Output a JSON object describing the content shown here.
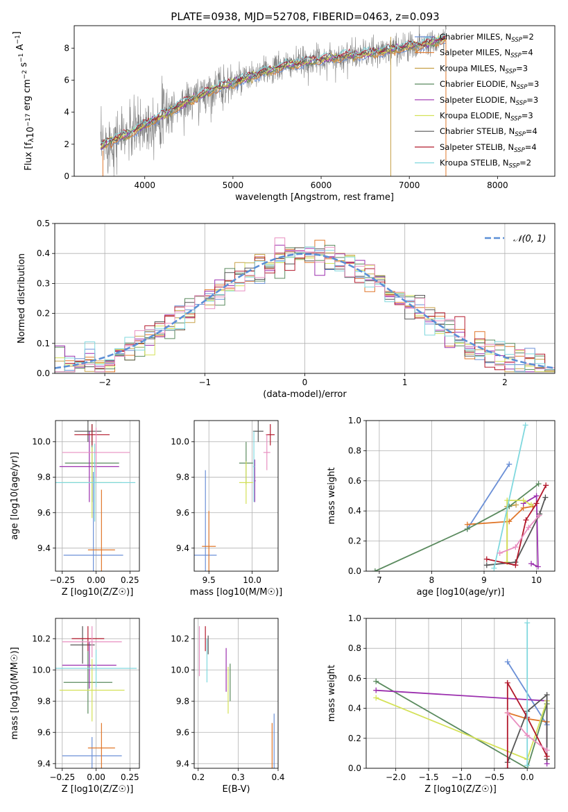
{
  "title": "PLATE=0938, MJD=52708, FIBERID=0463, z=0.093",
  "colors": {
    "Chabrier MILES": "#6a8fd6",
    "Salpeter MILES": "#e0772a",
    "Kroupa MILES": "#c8a24a",
    "Chabrier ELODIE": "#5a8a5e",
    "Salpeter ELODIE": "#9b2fae",
    "Kroupa ELODIE": "#d4e157",
    "Chabrier STELIB": "#555555",
    "Salpeter STELIB": "#b2182b",
    "Kroupa STELIB": "#80d8de",
    "extra_pink": "#e88fc0",
    "gaussian": "#5b8fd6"
  },
  "legend_spectrum": [
    {
      "pre": "Chabrier MILES, N",
      "sub": "SSP",
      "post": "=2"
    },
    {
      "pre": "Salpeter MILES, N",
      "sub": "SSP",
      "post": "=4"
    },
    {
      "pre": "Kroupa MILES, N",
      "sub": "SSP",
      "post": "=3"
    },
    {
      "pre": "Chabrier ELODIE, N",
      "sub": "SSP",
      "post": "=3"
    },
    {
      "pre": "Salpeter ELODIE, N",
      "sub": "SSP",
      "post": "=3"
    },
    {
      "pre": "Kroupa ELODIE, N",
      "sub": "SSP",
      "post": "=3"
    },
    {
      "pre": "Chabrier STELIB, N",
      "sub": "SSP",
      "post": "=4"
    },
    {
      "pre": "Salpeter STELIB, N",
      "sub": "SSP",
      "post": "=4"
    },
    {
      "pre": "Kroupa STELIB, N",
      "sub": "SSP",
      "post": "=2"
    }
  ],
  "legend_hist": "𝒩(0, 1)",
  "chart_data": [
    {
      "id": "spectrum",
      "type": "line",
      "title": "PLATE=0938, MJD=52708, FIBERID=0463, z=0.093",
      "xlabel": "wavelength [Angstrom, rest frame]",
      "ylabel": "Flux [fλ 10⁻¹⁷ erg cm⁻² s⁻¹ A⁻¹]",
      "xlim": [
        3200,
        8650
      ],
      "ylim": [
        0,
        9.4
      ],
      "xticks": [
        4000,
        5000,
        6000,
        7000,
        8000
      ],
      "yticks": [
        0,
        2,
        4,
        6,
        8
      ],
      "grid": false,
      "legend_position": "top-right",
      "data_x_range": [
        3500,
        7420
      ],
      "model_trend": {
        "x": [
          3500,
          3600,
          3800,
          4000,
          4200,
          4500,
          4800,
          5000,
          5300,
          5600,
          6000,
          6300,
          6600,
          6900,
          7200,
          7400
        ],
        "y": [
          1.8,
          2.2,
          2.6,
          3.2,
          3.8,
          4.7,
          5.5,
          5.8,
          6.4,
          6.9,
          7.3,
          7.5,
          7.7,
          8.0,
          8.3,
          8.6
        ]
      }
    },
    {
      "id": "residual_histogram",
      "type": "bar",
      "xlabel": "(data-model)/error",
      "ylabel": "Normed distribution",
      "xlim": [
        -2.5,
        2.5
      ],
      "ylim": [
        0,
        0.5
      ],
      "xticks": [
        -2,
        -1,
        0,
        1,
        2
      ],
      "yticks": [
        0.0,
        0.1,
        0.2,
        0.3,
        0.4,
        0.5
      ],
      "bin_width": 0.1,
      "grid": true,
      "legend_position": "top-right",
      "reference": "normal(0,1)"
    },
    {
      "id": "age_vs_Z",
      "type": "scatter",
      "xlabel": "Z [log10(Z/Z☉)]",
      "ylabel": "age [log10(age/yr)]",
      "xlim": [
        -0.3,
        0.32
      ],
      "ylim": [
        9.27,
        10.12
      ],
      "xticks": [
        -0.25,
        0.0,
        0.25
      ],
      "yticks": [
        9.4,
        9.6,
        9.8,
        10.0
      ],
      "grid": true,
      "points": [
        {
          "series": "Chabrier MILES",
          "x": -0.02,
          "y": 9.36,
          "xerr": 0.22,
          "yerr": 0.47
        },
        {
          "series": "Salpeter MILES",
          "x": 0.04,
          "y": 9.39,
          "xerr": 0.1,
          "yerr": 0.34
        },
        {
          "series": "Chabrier ELODIE",
          "x": -0.03,
          "y": 9.88,
          "xerr": 0.2,
          "yerr": 0.22
        },
        {
          "series": "Salpeter ELODIE",
          "x": -0.05,
          "y": 9.86,
          "xerr": 0.22,
          "yerr": 0.2
        },
        {
          "series": "Kroupa ELODIE",
          "x": -0.03,
          "y": 9.77,
          "xerr": 0.22,
          "yerr": 0.2
        },
        {
          "series": "Chabrier STELIB",
          "x": -0.06,
          "y": 10.06,
          "xerr": 0.1,
          "yerr": 0.06
        },
        {
          "series": "Salpeter STELIB",
          "x": -0.03,
          "y": 10.04,
          "xerr": 0.13,
          "yerr": 0.06
        },
        {
          "series": "Kroupa STELIB",
          "x": -0.01,
          "y": 9.77,
          "xerr": 0.3,
          "yerr": 0.22
        },
        {
          "series": "extra_pink",
          "x": 0.0,
          "y": 9.94,
          "xerr": 0.25,
          "yerr": 0.14
        }
      ]
    },
    {
      "id": "age_vs_mass",
      "type": "scatter",
      "xlabel": "mass [log10(M/M☉)]",
      "xlim": [
        9.33,
        10.3
      ],
      "ylim": [
        9.27,
        10.12
      ],
      "xticks": [
        9.5,
        10.0
      ],
      "yticks": [
        9.4,
        9.6,
        9.8,
        10.0
      ],
      "grid": true,
      "points": [
        {
          "series": "Chabrier MILES",
          "x": 9.46,
          "y": 9.36,
          "xerr": 0.13,
          "yerr": 0.48
        },
        {
          "series": "Salpeter MILES",
          "x": 9.5,
          "y": 9.41,
          "xerr": 0.08,
          "yerr": 0.2
        },
        {
          "series": "Chabrier ELODIE",
          "x": 9.93,
          "y": 9.88,
          "xerr": 0.08,
          "yerr": 0.12
        },
        {
          "series": "Salpeter ELODIE",
          "x": 10.03,
          "y": 9.78,
          "xerr": 0.01,
          "yerr": 0.12
        },
        {
          "series": "Kroupa ELODIE",
          "x": 9.93,
          "y": 9.77,
          "xerr": 0.08,
          "yerr": 0.12
        },
        {
          "series": "Chabrier STELIB",
          "x": 10.07,
          "y": 10.06,
          "xerr": 0.06,
          "yerr": 0.06
        },
        {
          "series": "Salpeter STELIB",
          "x": 10.21,
          "y": 10.04,
          "xerr": 0.05,
          "yerr": 0.06
        },
        {
          "series": "Kroupa STELIB",
          "x": 10.02,
          "y": 9.86,
          "xerr": 0.01,
          "yerr": 0.2
        },
        {
          "series": "extra_pink",
          "x": 10.17,
          "y": 9.94,
          "xerr": 0.04,
          "yerr": 0.1
        }
      ]
    },
    {
      "id": "massweight_vs_age",
      "type": "line",
      "xlabel": "age [log10(age/yr)]",
      "ylabel": "mass weight",
      "xlim": [
        6.75,
        10.35
      ],
      "ylim": [
        0,
        1.0
      ],
      "xticks": [
        7,
        8,
        9,
        10
      ],
      "yticks": [
        0.0,
        0.2,
        0.4,
        0.6,
        0.8,
        1.0
      ],
      "grid": true,
      "series": [
        {
          "name": "Chabrier MILES",
          "x": [
            8.68,
            9.48
          ],
          "y": [
            0.28,
            0.71
          ]
        },
        {
          "name": "Salpeter MILES",
          "x": [
            8.68,
            9.48,
            9.75,
            9.93
          ],
          "y": [
            0.31,
            0.33,
            0.42,
            0.43
          ]
        },
        {
          "name": "Kroupa MILES",
          "x": [
            9.44,
            9.44,
            9.61
          ],
          "y": [
            0.06,
            0.43,
            0.44
          ]
        },
        {
          "name": "Chabrier ELODIE",
          "x": [
            6.92,
            8.68,
            9.48,
            10.04
          ],
          "y": [
            0.0,
            0.28,
            0.43,
            0.58
          ]
        },
        {
          "name": "Salpeter ELODIE",
          "x": [
            9.75,
            10.0,
            10.03,
            9.9
          ],
          "y": [
            0.45,
            0.5,
            0.03,
            0.05
          ]
        },
        {
          "name": "Kroupa ELODIE",
          "x": [
            9.44,
            9.44,
            9.75,
            9.9
          ],
          "y": [
            0.06,
            0.47,
            0.47,
            0.44
          ]
        },
        {
          "name": "Chabrier STELIB",
          "x": [
            9.05,
            9.6,
            10.06,
            10.17
          ],
          "y": [
            0.04,
            0.06,
            0.38,
            0.49
          ]
        },
        {
          "name": "Salpeter STELIB",
          "x": [
            9.05,
            9.6,
            9.8,
            10.0,
            10.18
          ],
          "y": [
            0.08,
            0.04,
            0.34,
            0.45,
            0.57
          ]
        },
        {
          "name": "Kroupa STELIB",
          "x": [
            9.19,
            9.79
          ],
          "y": [
            0.02,
            0.97
          ]
        },
        {
          "name": "extra_pink",
          "x": [
            9.3,
            9.6,
            9.85,
            10.05
          ],
          "y": [
            0.12,
            0.16,
            0.29,
            0.37
          ]
        }
      ]
    },
    {
      "id": "mass_vs_Z",
      "type": "scatter",
      "xlabel": "Z [log10(Z/Z☉)]",
      "ylabel": "mass [log10(M/M☉)]",
      "xlim": [
        -0.3,
        0.32
      ],
      "ylim": [
        9.37,
        10.33
      ],
      "xticks": [
        -0.25,
        0.0,
        0.25
      ],
      "yticks": [
        9.4,
        9.6,
        9.8,
        10.0,
        10.2
      ],
      "grid": true,
      "points": [
        {
          "series": "Chabrier MILES",
          "x": -0.03,
          "y": 9.45,
          "xerr": 0.22,
          "yerr": 0.12
        },
        {
          "series": "Salpeter MILES",
          "x": 0.04,
          "y": 9.5,
          "xerr": 0.1,
          "yerr": 0.16
        },
        {
          "series": "Chabrier ELODIE",
          "x": -0.06,
          "y": 9.92,
          "xerr": 0.18,
          "yerr": 0.2
        },
        {
          "series": "Salpeter ELODIE",
          "x": -0.05,
          "y": 10.03,
          "xerr": 0.2,
          "yerr": 0.15
        },
        {
          "series": "Kroupa ELODIE",
          "x": -0.03,
          "y": 9.87,
          "xerr": 0.24,
          "yerr": 0.2
        },
        {
          "series": "Chabrier STELIB",
          "x": -0.1,
          "y": 10.16,
          "xerr": 0.09,
          "yerr": 0.12
        },
        {
          "series": "Salpeter STELIB",
          "x": -0.06,
          "y": 10.2,
          "xerr": 0.12,
          "yerr": 0.08
        },
        {
          "series": "Kroupa STELIB",
          "x": 0.0,
          "y": 10.01,
          "xerr": 0.3,
          "yerr": 0.12
        },
        {
          "series": "extra_pink",
          "x": -0.03,
          "y": 10.18,
          "xerr": 0.22,
          "yerr": 0.1
        }
      ]
    },
    {
      "id": "mass_vs_EBV",
      "type": "scatter",
      "xlabel": "E(B-V)",
      "xlim": [
        0.19,
        0.4
      ],
      "ylim": [
        9.37,
        10.33
      ],
      "xticks": [
        0.2,
        0.3,
        0.4
      ],
      "yticks": [
        9.4,
        9.6,
        9.8,
        10.0,
        10.2
      ],
      "grid": true,
      "points": [
        {
          "series": "Chabrier MILES",
          "x": 0.39,
          "y": 9.5,
          "xerr": 0.0,
          "yerr": 0.22
        },
        {
          "series": "Salpeter MILES",
          "x": 0.385,
          "y": 9.5,
          "xerr": 0.0,
          "yerr": 0.16
        },
        {
          "series": "Chabrier ELODIE",
          "x": 0.28,
          "y": 9.92,
          "xerr": 0.0,
          "yerr": 0.12
        },
        {
          "series": "Salpeter ELODIE",
          "x": 0.27,
          "y": 10.0,
          "xerr": 0.0,
          "yerr": 0.14
        },
        {
          "series": "Kroupa ELODIE",
          "x": 0.275,
          "y": 9.87,
          "xerr": 0.0,
          "yerr": 0.15
        },
        {
          "series": "Chabrier STELIB",
          "x": 0.225,
          "y": 10.16,
          "xerr": 0.0,
          "yerr": 0.06
        },
        {
          "series": "Salpeter STELIB",
          "x": 0.218,
          "y": 10.2,
          "xerr": 0.0,
          "yerr": 0.08
        },
        {
          "series": "Kroupa STELIB",
          "x": 0.222,
          "y": 10.06,
          "xerr": 0.0,
          "yerr": 0.14
        },
        {
          "series": "extra_pink",
          "x": 0.203,
          "y": 10.12,
          "xerr": 0.0,
          "yerr": 0.16
        }
      ]
    },
    {
      "id": "massweight_vs_Z",
      "type": "line",
      "xlabel": "Z [log10(Z/Z☉)]",
      "ylabel": "mass weight",
      "xlim": [
        -2.45,
        0.42
      ],
      "ylim": [
        0,
        1.0
      ],
      "xticks": [
        -2.0,
        -1.5,
        -1.0,
        -0.5,
        0.0
      ],
      "yticks": [
        0.0,
        0.2,
        0.4,
        0.6,
        0.8,
        1.0
      ],
      "grid": true,
      "series": [
        {
          "name": "Chabrier MILES",
          "x": [
            -0.3,
            0.3
          ],
          "y": [
            0.71,
            0.29
          ]
        },
        {
          "name": "Salpeter MILES",
          "x": [
            -0.3,
            0.0,
            0.3
          ],
          "y": [
            0.37,
            0.33,
            0.31
          ]
        },
        {
          "name": "Kroupa MILES",
          "x": [
            0.3,
            0.3
          ],
          "y": [
            0.06,
            0.43
          ]
        },
        {
          "name": "Chabrier ELODIE",
          "x": [
            -2.3,
            0.0,
            0.3
          ],
          "y": [
            0.58,
            0.0,
            0.43
          ]
        },
        {
          "name": "Salpeter ELODIE",
          "x": [
            -2.3,
            0.3,
            0.3
          ],
          "y": [
            0.52,
            0.45,
            0.03
          ]
        },
        {
          "name": "Kroupa ELODIE",
          "x": [
            -2.3,
            0.0,
            0.3
          ],
          "y": [
            0.47,
            0.06,
            0.45
          ]
        },
        {
          "name": "Chabrier STELIB",
          "x": [
            -0.3,
            0.0,
            0.3,
            0.3
          ],
          "y": [
            0.04,
            0.38,
            0.49,
            0.06
          ]
        },
        {
          "name": "Salpeter STELIB",
          "x": [
            -0.3,
            -0.3,
            0.0,
            0.3
          ],
          "y": [
            0.0,
            0.57,
            0.34,
            0.08
          ]
        },
        {
          "name": "Kroupa STELIB",
          "x": [
            0.0,
            0.0
          ],
          "y": [
            0.02,
            0.97
          ]
        },
        {
          "name": "extra_pink",
          "x": [
            -0.3,
            0.0,
            0.3
          ],
          "y": [
            0.37,
            0.22,
            0.12
          ]
        }
      ]
    }
  ]
}
